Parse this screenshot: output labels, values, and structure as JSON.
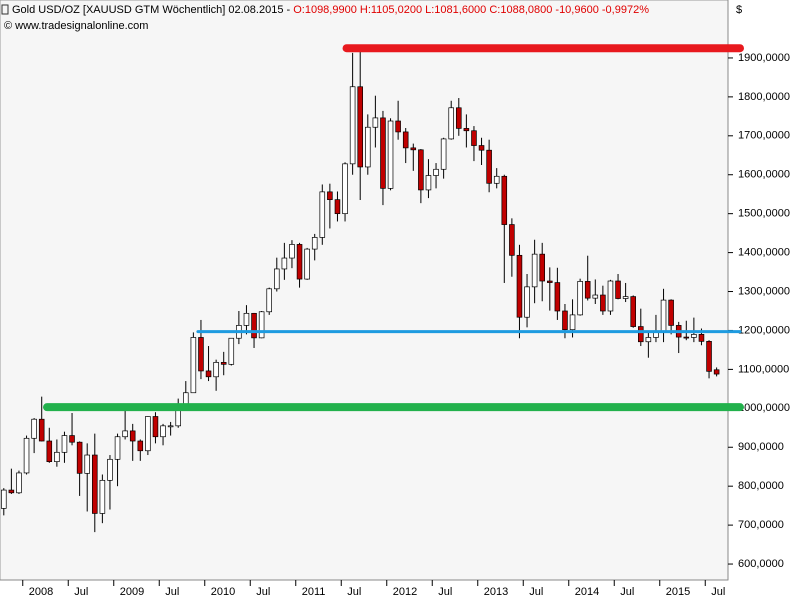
{
  "chart_data": {
    "type": "candlestick",
    "title": "Gold USD/OZ [XAUUSD GTM  Wöchentlich] 02.08.2015 -",
    "quote": "O:1098,9900 H:1105,0200 L:1081,6000 C:1088,0800 -10,9600 -0,9972%",
    "source": "© www.tradesignalonline.com",
    "currency": "$",
    "open": [
      743,
      790,
      783,
      834,
      923,
      972,
      916,
      863,
      887,
      930,
      913,
      833,
      880,
      730,
      815,
      869,
      927,
      942,
      916,
      891,
      979,
      927,
      955,
      955,
      1001,
      1040,
      1182,
      1096,
      1081,
      1118,
      1113,
      1180,
      1213,
      1244,
      1181,
      1248,
      1307,
      1358,
      1386,
      1421,
      1332,
      1409,
      1439,
      1556,
      1536,
      1500,
      1628,
      1826,
      1620,
      1722,
      1746,
      1565,
      1738,
      1710,
      1669,
      1664,
      1561,
      1598,
      1614,
      1692,
      1772,
      1719,
      1713,
      1675,
      1663,
      1578,
      1596,
      1472,
      1393,
      1234,
      1312,
      1396,
      1327,
      1323,
      1250,
      1202,
      1240,
      1326,
      1283,
      1291,
      1250,
      1327,
      1282,
      1287,
      1210,
      1171,
      1182,
      1199,
      1278,
      1213,
      1183,
      1182,
      1190,
      1172,
      1099
    ],
    "high": [
      795,
      845,
      840,
      930,
      975,
      1030,
      950,
      920,
      940,
      988,
      915,
      910,
      935,
      830,
      880,
      935,
      1005,
      960,
      920,
      980,
      990,
      960,
      965,
      1025,
      1070,
      1195,
      1227,
      1160,
      1125,
      1145,
      1180,
      1250,
      1265,
      1245,
      1250,
      1310,
      1387,
      1425,
      1432,
      1425,
      1412,
      1448,
      1575,
      1577,
      1557,
      1632,
      1913,
      1921,
      1755,
      1803,
      1764,
      1745,
      1790,
      1720,
      1680,
      1666,
      1640,
      1630,
      1695,
      1790,
      1797,
      1755,
      1725,
      1695,
      1690,
      1617,
      1600,
      1488,
      1420,
      1345,
      1433,
      1425,
      1362,
      1361,
      1268,
      1280,
      1333,
      1392,
      1331,
      1315,
      1330,
      1345,
      1322,
      1290,
      1256,
      1200,
      1240,
      1307,
      1280,
      1222,
      1225,
      1233,
      1205,
      1175,
      1105
    ],
    "low": [
      725,
      780,
      780,
      830,
      885,
      915,
      860,
      850,
      860,
      905,
      775,
      735,
      682,
      705,
      740,
      800,
      920,
      865,
      865,
      880,
      910,
      905,
      930,
      950,
      1000,
      1040,
      1075,
      1070,
      1045,
      1085,
      1110,
      1165,
      1190,
      1155,
      1180,
      1240,
      1300,
      1330,
      1360,
      1310,
      1330,
      1380,
      1420,
      1462,
      1480,
      1480,
      1600,
      1535,
      1600,
      1670,
      1522,
      1560,
      1690,
      1630,
      1610,
      1527,
      1540,
      1565,
      1590,
      1690,
      1700,
      1670,
      1635,
      1625,
      1555,
      1565,
      1322,
      1338,
      1180,
      1208,
      1270,
      1275,
      1251,
      1227,
      1180,
      1182,
      1238,
      1277,
      1268,
      1240,
      1240,
      1280,
      1273,
      1207,
      1160,
      1130,
      1170,
      1170,
      1190,
      1142,
      1175,
      1170,
      1162,
      1077,
      1082
    ],
    "close": [
      790,
      783,
      834,
      923,
      972,
      916,
      863,
      887,
      930,
      913,
      833,
      880,
      730,
      815,
      869,
      927,
      942,
      916,
      891,
      979,
      927,
      955,
      955,
      1001,
      1040,
      1182,
      1096,
      1081,
      1118,
      1113,
      1180,
      1213,
      1244,
      1181,
      1248,
      1307,
      1358,
      1386,
      1421,
      1332,
      1409,
      1439,
      1556,
      1536,
      1500,
      1628,
      1826,
      1620,
      1722,
      1746,
      1565,
      1738,
      1710,
      1669,
      1664,
      1561,
      1598,
      1614,
      1692,
      1772,
      1719,
      1713,
      1675,
      1663,
      1578,
      1596,
      1472,
      1393,
      1234,
      1312,
      1396,
      1327,
      1323,
      1250,
      1202,
      1240,
      1326,
      1283,
      1291,
      1250,
      1327,
      1282,
      1287,
      1210,
      1171,
      1182,
      1199,
      1278,
      1213,
      1183,
      1182,
      1190,
      1172,
      1095,
      1088
    ],
    "up_color": "#ffffff",
    "down_color": "#c00000",
    "xlim": [
      -0.5,
      95.5
    ],
    "xticks": [
      {
        "value": 3,
        "label": "2008"
      },
      {
        "value": 9,
        "label": "Jul"
      },
      {
        "value": 15,
        "label": "2009"
      },
      {
        "value": 21,
        "label": "Jul"
      },
      {
        "value": 27,
        "label": "2010"
      },
      {
        "value": 33,
        "label": "Jul"
      },
      {
        "value": 39,
        "label": "2011"
      },
      {
        "value": 45,
        "label": "Jul"
      },
      {
        "value": 51,
        "label": "2012"
      },
      {
        "value": 57,
        "label": "Jul"
      },
      {
        "value": 63,
        "label": "2013"
      },
      {
        "value": 69,
        "label": "Jul"
      },
      {
        "value": 75,
        "label": "2014"
      },
      {
        "value": 81,
        "label": "Jul"
      },
      {
        "value": 87,
        "label": "2015"
      },
      {
        "value": 93,
        "label": "Jul"
      }
    ],
    "ylim": [
      559,
      2036
    ],
    "yticks": [
      {
        "value": 600,
        "label": "600,0000"
      },
      {
        "value": 700,
        "label": "700,0000"
      },
      {
        "value": 800,
        "label": "800,0000"
      },
      {
        "value": 900,
        "label": "900,0000"
      },
      {
        "value": 1000,
        "label": "1000,0000"
      },
      {
        "value": 1100,
        "label": "1100,0000"
      },
      {
        "value": 1200,
        "label": "1200,0000"
      },
      {
        "value": 1300,
        "label": "1300,0000"
      },
      {
        "value": 1400,
        "label": "1400,0000"
      },
      {
        "value": 1500,
        "label": "1500,0000"
      },
      {
        "value": 1600,
        "label": "1600,0000"
      },
      {
        "value": 1700,
        "label": "1700,0000"
      },
      {
        "value": 1800,
        "label": "1800,0000"
      },
      {
        "value": 1900,
        "label": "1900,0000"
      }
    ],
    "lines": [
      {
        "value": 1925,
        "color": "#e8191e",
        "width": 8,
        "start": 45.2
      },
      {
        "value": 1197,
        "color": "#1e9be0",
        "width": 3,
        "start": 25.6
      },
      {
        "value": 1003,
        "color": "#22b14c",
        "width": 8,
        "start": 5.7
      }
    ]
  }
}
